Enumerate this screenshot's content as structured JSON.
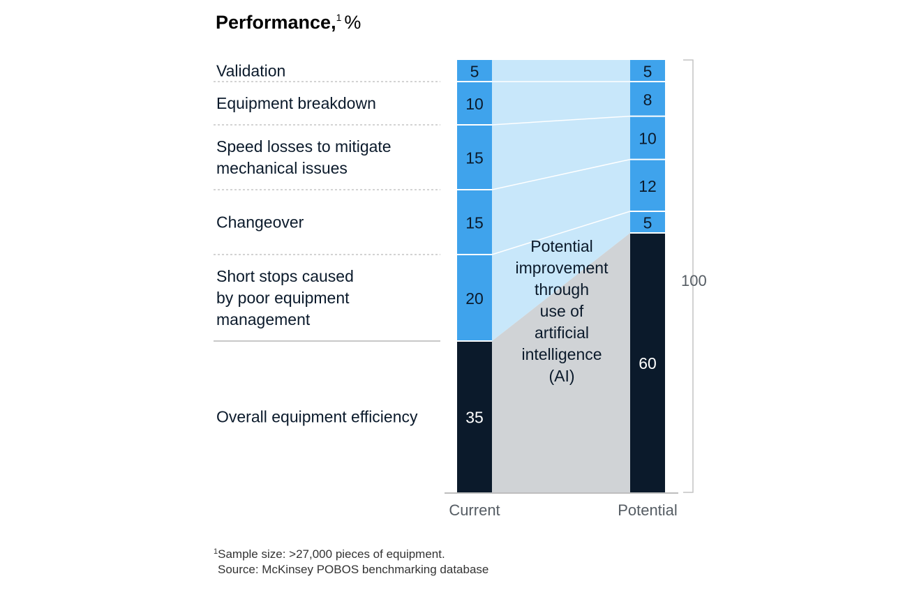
{
  "chart_data": {
    "type": "bar",
    "subtype": "stacked-comparison",
    "title": "Performance,",
    "title_superscript": "1",
    "title_unit": "%",
    "categories": [
      "Current",
      "Potential"
    ],
    "series": [
      {
        "name": "Overall equipment efficiency",
        "label_lines": [
          "Overall equipment efficiency"
        ],
        "values": [
          35,
          60
        ]
      },
      {
        "name": "Short stops caused by poor equipment management",
        "label_lines": [
          "Short stops caused",
          "by poor equipment",
          "management"
        ],
        "values": [
          20,
          5
        ]
      },
      {
        "name": "Changeover",
        "label_lines": [
          "Changeover"
        ],
        "values": [
          15,
          12
        ]
      },
      {
        "name": "Speed losses to mitigate mechanical issues",
        "label_lines": [
          "Speed losses to mitigate",
          "mechanical issues"
        ],
        "values": [
          15,
          10
        ]
      },
      {
        "name": "Equipment breakdown",
        "label_lines": [
          "Equipment breakdown"
        ],
        "values": [
          10,
          8
        ]
      },
      {
        "name": "Validation",
        "label_lines": [
          "Validation"
        ],
        "values": [
          5,
          5
        ]
      }
    ],
    "total_label": "100",
    "ylim": [
      0,
      100
    ],
    "annotation_lines": [
      "Potential",
      "improvement",
      "through",
      "use of",
      "artificial",
      "intelligence",
      "(AI)"
    ],
    "footnote": "Sample size: >27,000 pieces of equipment.",
    "footnote_marker": "1",
    "source": "Source: McKinsey POBOS benchmarking database",
    "colors": {
      "efficiency": "#0b1a2b",
      "loss": "#3fa3ec",
      "band": "#c8e7fa",
      "improvement": "#d0d3d6",
      "text_dark": "#0b1a2b",
      "text_light": "#ffffff",
      "separator": "#ffffff",
      "dotted": "#b9b9b9"
    }
  }
}
